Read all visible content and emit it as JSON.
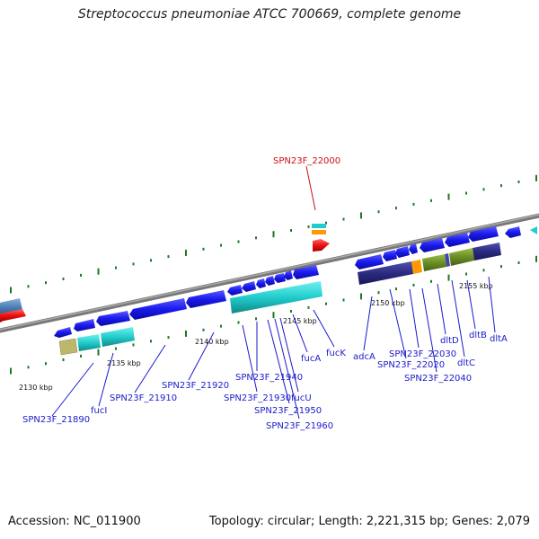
{
  "title": "Streptococcus pneumoniae ATCC 700669, complete genome",
  "footer": {
    "accession": "Accession: NC_011900",
    "topology": "Topology: circular; Length: 2,221,315 bp; Genes: 2,079"
  },
  "colors": {
    "backbone": "#888888",
    "gene_blue": "#1a1aee",
    "label_blue": "#1a1acc",
    "focus_red": "#cc1111",
    "tick_green": "#1f7a1f",
    "cyan": "#22cccc",
    "olive": "#6b8e23",
    "navy": "#2b2b80",
    "orange": "#ff9900",
    "khaki": "#bdb76b"
  },
  "scale_labels": [
    "2130 kbp",
    "2135 kbp",
    "2140 kbp",
    "2145 kbp",
    "2150 kbp",
    "2155 kbp"
  ],
  "focus_gene": "SPN23F_22000",
  "gene_labels": [
    "SPN23F_21890",
    "fucI",
    "SPN23F_21910",
    "SPN23F_21920",
    "SPN23F_21930",
    "SPN23F_21940",
    "fucU",
    "SPN23F_21950",
    "SPN23F_21960",
    "fucA",
    "fucK",
    "adcA",
    "SPN23F_22020",
    "SPN23F_22030",
    "SPN23F_22040",
    "dltD",
    "dltC",
    "dltB",
    "dltA"
  ]
}
